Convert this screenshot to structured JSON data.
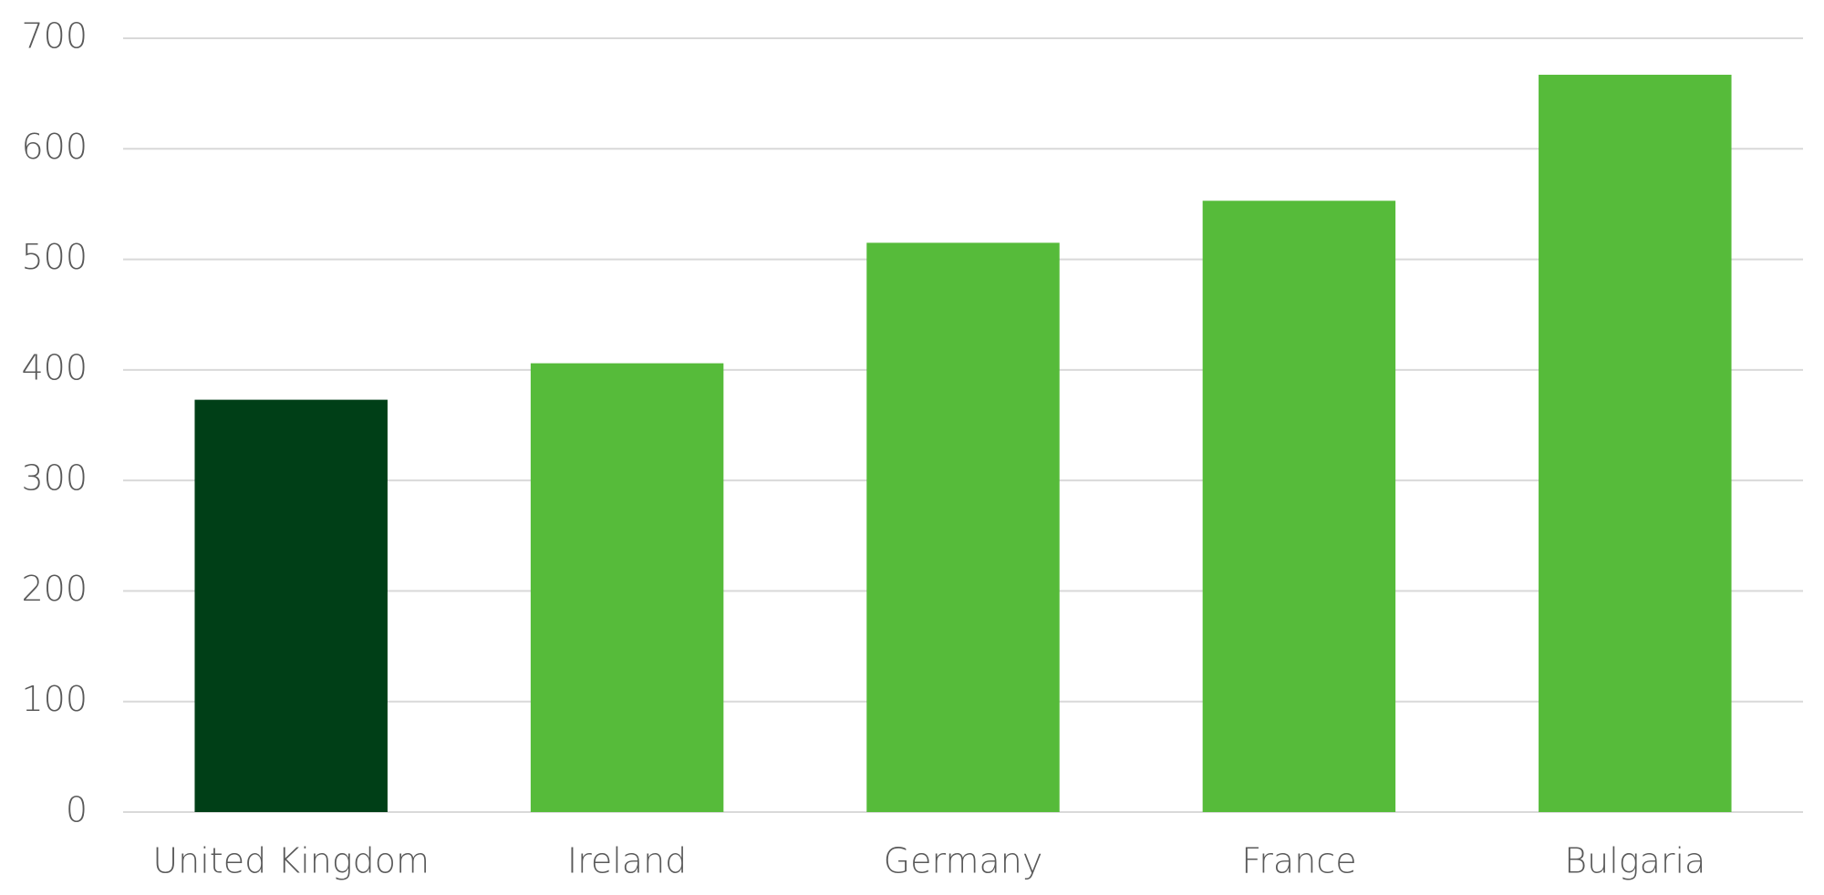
{
  "chart_data": {
    "type": "bar",
    "categories": [
      "United Kingdom",
      "Ireland",
      "Germany",
      "France",
      "Bulgaria"
    ],
    "values": [
      373,
      406,
      515,
      553,
      667
    ],
    "colors": [
      "#003f17",
      "#56bb3a",
      "#56bb3a",
      "#56bb3a",
      "#56bb3a"
    ],
    "ylim": [
      0,
      700
    ],
    "yticks": [
      0,
      100,
      200,
      300,
      400,
      500,
      600,
      700
    ],
    "grid": true
  }
}
